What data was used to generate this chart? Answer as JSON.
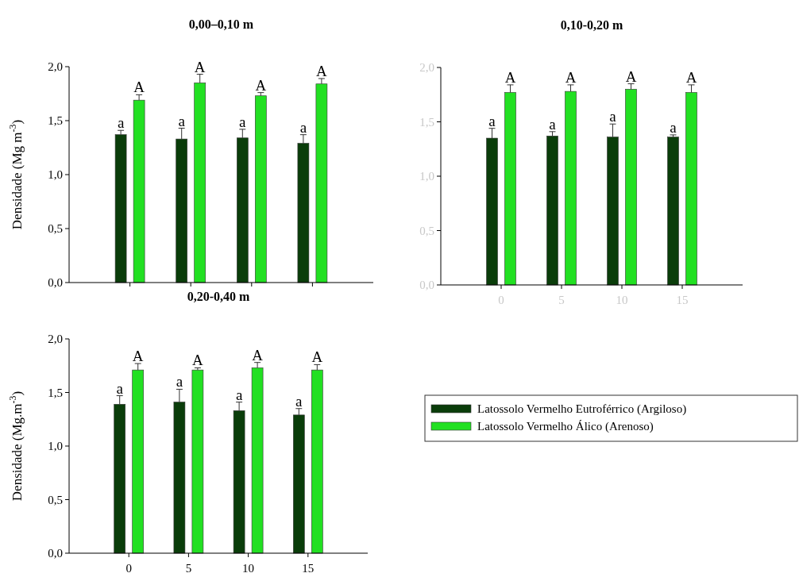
{
  "chart_data": [
    {
      "type": "bar",
      "title": "0,00–0,10 m",
      "ylabel": "Densidade (Mg m$^{-3}$)",
      "categories": [
        "0",
        "5",
        "10",
        "15"
      ],
      "ylim": [
        0,
        2
      ],
      "yticks": [
        {
          "value": 0,
          "label": "0,0"
        },
        {
          "value": 0.5,
          "label": "0,5"
        },
        {
          "value": 1,
          "label": "1,0"
        },
        {
          "value": 1.5,
          "label": "1,5"
        },
        {
          "value": 2,
          "label": "2,0"
        }
      ],
      "tick_labels": "y",
      "legend": false,
      "series": [
        {
          "color": "#0a3d0a",
          "values": [
            1.37,
            1.33,
            1.34,
            1.29
          ],
          "errors": [
            0.04,
            0.1,
            0.08,
            0.08
          ]
        },
        {
          "color": "#22e022",
          "values": [
            1.69,
            1.85,
            1.73,
            1.84
          ],
          "errors": [
            0.05,
            0.08,
            0.03,
            0.05
          ]
        }
      ],
      "annotations": [
        "a",
        "a",
        "a",
        "a",
        "A",
        "A",
        "A",
        "A"
      ]
    },
    {
      "type": "bar",
      "title": "0,10-0,20 m",
      "categories": [
        "0",
        "5",
        "10",
        "15"
      ],
      "ylim": [
        0,
        2
      ],
      "yticks": [
        {
          "value": 0,
          "label": "0,0"
        },
        {
          "value": 0.5,
          "label": "0,5"
        },
        {
          "value": 1,
          "label": "1,0"
        },
        {
          "value": 1.5,
          "label": "1,5"
        },
        {
          "value": 2,
          "label": "2,0"
        }
      ],
      "legend": false,
      "series": [
        {
          "color": "#0a3d0a",
          "values": [
            1.35,
            1.37,
            1.36,
            1.36
          ],
          "errors": [
            0.09,
            0.04,
            0.12,
            0.02
          ]
        },
        {
          "color": "#22e022",
          "values": [
            1.77,
            1.78,
            1.8,
            1.77
          ],
          "errors": [
            0.07,
            0.06,
            0.05,
            0.07
          ]
        }
      ],
      "annotations": [
        "a",
        "a",
        "a",
        "a",
        "A",
        "A",
        "A",
        "A"
      ]
    },
    {
      "type": "bar",
      "title": "0,20-0,40 m",
      "ylabel": "Densidade (Mg.m$^{-3}$)",
      "categories": [
        "0",
        "5",
        "10",
        "15"
      ],
      "ylim": [
        0,
        2
      ],
      "yticks": [
        {
          "value": 0,
          "label": "0,0"
        },
        {
          "value": 0.5,
          "label": "0,5"
        },
        {
          "value": 1,
          "label": "1,0"
        },
        {
          "value": 1.5,
          "label": "1,5"
        },
        {
          "value": 2,
          "label": "2,0"
        }
      ],
      "legend": "right",
      "series": [
        {
          "name": "Latossolo Vermelho Eutroférrico (Argiloso)",
          "color": "#0a3d0a",
          "values": [
            1.39,
            1.41,
            1.33,
            1.29
          ],
          "errors": [
            0.08,
            0.12,
            0.08,
            0.06
          ]
        },
        {
          "name": "Latossolo Vermelho Álico (Arenoso)",
          "color": "#22e022",
          "values": [
            1.71,
            1.71,
            1.73,
            1.71
          ],
          "errors": [
            0.06,
            0.02,
            0.05,
            0.05
          ]
        }
      ],
      "annotations": [
        "a",
        "a",
        "a",
        "a",
        "A",
        "A",
        "A",
        "A"
      ]
    }
  ]
}
